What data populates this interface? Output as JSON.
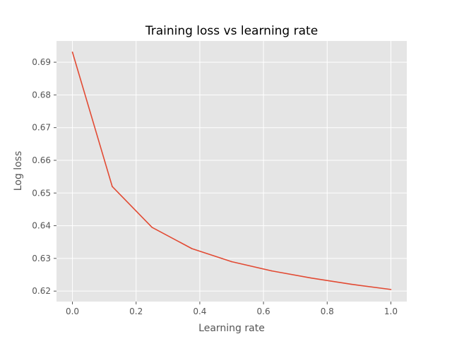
{
  "chart_data": {
    "type": "line",
    "title": "Training loss vs learning rate",
    "xlabel": "Learning rate",
    "ylabel": "Log loss",
    "xlim": [
      -0.05,
      1.05
    ],
    "ylim": [
      0.6168,
      0.6965
    ],
    "x_ticks": [
      0.0,
      0.2,
      0.4,
      0.6,
      0.8,
      1.0
    ],
    "x_tick_labels": [
      "0.0",
      "0.2",
      "0.4",
      "0.6",
      "0.8",
      "1.0"
    ],
    "y_ticks": [
      0.62,
      0.63,
      0.64,
      0.65,
      0.66,
      0.67,
      0.68,
      0.69
    ],
    "y_tick_labels": [
      "0.62",
      "0.63",
      "0.64",
      "0.65",
      "0.66",
      "0.67",
      "0.68",
      "0.69"
    ],
    "grid": true,
    "series": [
      {
        "color": "#e24a33",
        "x": [
          0.0,
          0.125,
          0.25,
          0.375,
          0.5,
          0.625,
          0.75,
          0.875,
          1.0
        ],
        "y": [
          0.6931,
          0.652,
          0.6395,
          0.633,
          0.629,
          0.6262,
          0.624,
          0.6221,
          0.6205
        ]
      }
    ],
    "background": "#e5e5e5"
  }
}
